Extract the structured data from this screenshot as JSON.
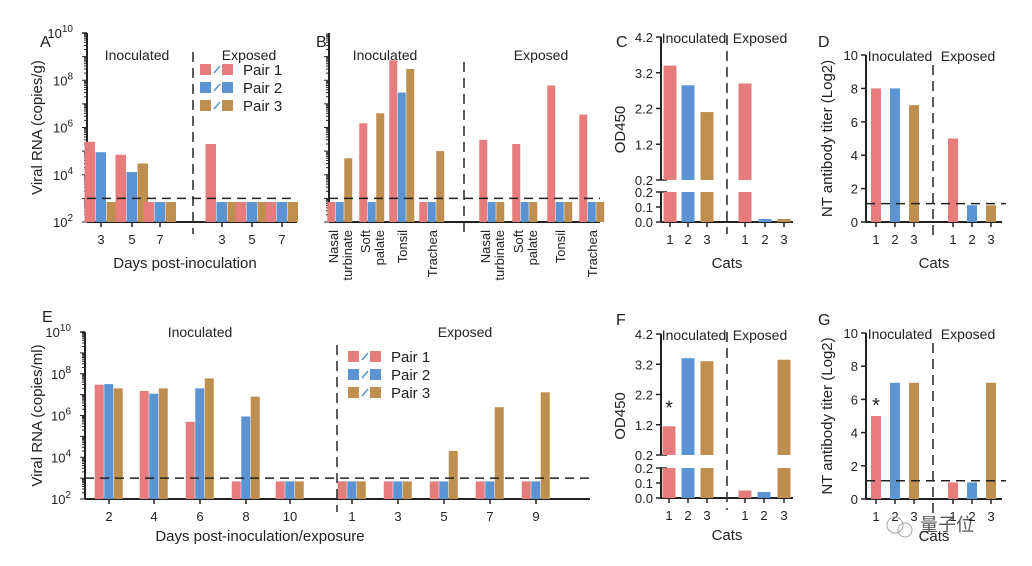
{
  "colors": {
    "pair1": "#e67c7c",
    "pair2": "#5b93d3",
    "pair3": "#bf8f4f",
    "asterisk": "#d03030"
  },
  "watermark": "量子位",
  "chart_data": [
    {
      "panel": "A",
      "type": "bar",
      "scale": "log",
      "ylabel": "Viral RNA (copies/g)",
      "xlabel": "Days post-inoculation",
      "ylim": [
        100,
        10000000000
      ],
      "yticks": [
        "10^2",
        "10^4",
        "10^6",
        "10^8",
        "10^10"
      ],
      "detection_limit": 1000,
      "legend": [
        "Pair 1",
        "Pair 2",
        "Pair 3"
      ],
      "legend_position": "top-right",
      "groups": [
        {
          "label": "Inoculated",
          "categories": [
            "3",
            "5",
            "7"
          ],
          "series": [
            {
              "name": "Pair 1",
              "values": [
                250000,
                70000,
                700
              ]
            },
            {
              "name": "Pair 2",
              "values": [
                90000,
                13000,
                700
              ]
            },
            {
              "name": "Pair 3",
              "values": [
                700,
                30000,
                700
              ]
            }
          ]
        },
        {
          "label": "Exposed",
          "categories": [
            "3",
            "5",
            "7"
          ],
          "series": [
            {
              "name": "Pair 1",
              "values": [
                200000,
                700,
                700
              ]
            },
            {
              "name": "Pair 2",
              "values": [
                700,
                700,
                700
              ]
            },
            {
              "name": "Pair 3",
              "values": [
                700,
                700,
                700
              ]
            }
          ]
        }
      ]
    },
    {
      "panel": "B",
      "type": "bar",
      "scale": "log",
      "ylim": [
        100,
        10000000000
      ],
      "detection_limit": 1000,
      "groups": [
        {
          "label": "Inoculated",
          "categories": [
            "Nasal turbinate",
            "Soft palate",
            "Tonsil",
            "Trachea"
          ],
          "series": [
            {
              "name": "Pair 1",
              "values": [
                700,
                1500000,
                700000000,
                700
              ]
            },
            {
              "name": "Pair 2",
              "values": [
                700,
                700,
                30000000,
                700
              ]
            },
            {
              "name": "Pair 3",
              "values": [
                50000,
                4000000,
                300000000,
                100000
              ]
            }
          ]
        },
        {
          "label": "Exposed",
          "categories": [
            "Nasal turbinate",
            "Soft palate",
            "Tonsil",
            "Trachea"
          ],
          "series": [
            {
              "name": "Pair 1",
              "values": [
                300000,
                200000,
                60000000,
                3500000
              ]
            },
            {
              "name": "Pair 2",
              "values": [
                700,
                700,
                700,
                700
              ]
            },
            {
              "name": "Pair 3",
              "values": [
                700,
                700,
                700,
                700
              ]
            }
          ]
        }
      ]
    },
    {
      "panel": "C",
      "type": "bar",
      "scale": "broken-linear",
      "ylabel": "OD450",
      "xlabel": "Cats",
      "upper_ticks": [
        "0.2",
        "1.2",
        "2.2",
        "3.2",
        "4.2"
      ],
      "lower_ticks": [
        "0.0",
        "0.1",
        "0.2"
      ],
      "groups": [
        {
          "label": "Inoculated",
          "categories": [
            "1",
            "2",
            "3"
          ],
          "values": [
            3.4,
            2.85,
            2.1
          ],
          "colors": [
            "pair1",
            "pair2",
            "pair3"
          ]
        },
        {
          "label": "Exposed",
          "categories": [
            "1",
            "2",
            "3"
          ],
          "values": [
            2.9,
            0.02,
            0.02
          ],
          "colors": [
            "pair1",
            "pair2",
            "pair3"
          ]
        }
      ]
    },
    {
      "panel": "D",
      "type": "bar",
      "scale": "linear",
      "ylabel": "NT antibody titer (Log2)",
      "xlabel": "Cats",
      "ylim": [
        0,
        10
      ],
      "yticks": [
        "0",
        "2",
        "4",
        "6",
        "8",
        "10"
      ],
      "detection_limit": 1.1,
      "groups": [
        {
          "label": "Inoculated",
          "categories": [
            "1",
            "2",
            "3"
          ],
          "values": [
            8,
            8,
            7
          ],
          "colors": [
            "pair1",
            "pair2",
            "pair3"
          ]
        },
        {
          "label": "Exposed",
          "categories": [
            "1",
            "2",
            "3"
          ],
          "values": [
            5,
            1,
            1
          ],
          "colors": [
            "pair1",
            "pair2",
            "pair3"
          ]
        }
      ]
    },
    {
      "panel": "E",
      "type": "bar",
      "scale": "log",
      "ylabel": "Viral RNA (copies/ml)",
      "xlabel": "Days post-inoculation/exposure",
      "ylim": [
        100,
        10000000000
      ],
      "yticks": [
        "10^2",
        "10^4",
        "10^6",
        "10^8",
        "10^10"
      ],
      "detection_limit": 1000,
      "legend": [
        "Pair 1",
        "Pair 2",
        "Pair 3"
      ],
      "legend_position": "top-left of Exposed",
      "groups": [
        {
          "label": "Inoculated",
          "categories": [
            "2",
            "4",
            "6",
            "8",
            "10"
          ],
          "series": [
            {
              "name": "Pair 1",
              "values": [
                30000000,
                15000000,
                500000,
                700,
                700
              ]
            },
            {
              "name": "Pair 2",
              "values": [
                32000000,
                11000000,
                20000000,
                900000,
                700
              ]
            },
            {
              "name": "Pair 3",
              "values": [
                20000000,
                20000000,
                60000000,
                8000000,
                700
              ]
            }
          ]
        },
        {
          "label": "Exposed",
          "categories": [
            "1",
            "3",
            "5",
            "7",
            "9"
          ],
          "series": [
            {
              "name": "Pair 1",
              "values": [
                700,
                700,
                700,
                700,
                700
              ]
            },
            {
              "name": "Pair 2",
              "values": [
                700,
                700,
                700,
                700,
                700
              ]
            },
            {
              "name": "Pair 3",
              "values": [
                700,
                700,
                20000,
                2500000,
                13000000
              ]
            }
          ]
        }
      ]
    },
    {
      "panel": "F",
      "type": "bar",
      "scale": "broken-linear",
      "ylabel": "OD450",
      "xlabel": "Cats",
      "upper_ticks": [
        "0.2",
        "1.2",
        "2.2",
        "3.2",
        "4.2"
      ],
      "lower_ticks": [
        "0.0",
        "0.1",
        "0.2"
      ],
      "annotation": "*",
      "groups": [
        {
          "label": "Inoculated",
          "categories": [
            "1",
            "2",
            "3"
          ],
          "values": [
            1.15,
            3.4,
            3.3
          ],
          "colors": [
            "pair1",
            "pair2",
            "pair3"
          ]
        },
        {
          "label": "Exposed",
          "categories": [
            "1",
            "2",
            "3"
          ],
          "values": [
            0.05,
            0.04,
            3.35
          ],
          "colors": [
            "pair1",
            "pair2",
            "pair3"
          ]
        }
      ]
    },
    {
      "panel": "G",
      "type": "bar",
      "scale": "linear",
      "ylabel": "NT antibody titer (Log2)",
      "xlabel": "Cats",
      "ylim": [
        0,
        10
      ],
      "yticks": [
        "0",
        "2",
        "4",
        "6",
        "8",
        "10"
      ],
      "detection_limit": 1.1,
      "annotation": "*",
      "groups": [
        {
          "label": "Inoculated",
          "categories": [
            "1",
            "2",
            "3"
          ],
          "values": [
            5,
            7,
            7
          ],
          "colors": [
            "pair1",
            "pair2",
            "pair3"
          ]
        },
        {
          "label": "Exposed",
          "categories": [
            "1",
            "2",
            "3"
          ],
          "values": [
            1,
            1,
            7
          ],
          "colors": [
            "pair1",
            "pair2",
            "pair3"
          ]
        }
      ]
    }
  ]
}
